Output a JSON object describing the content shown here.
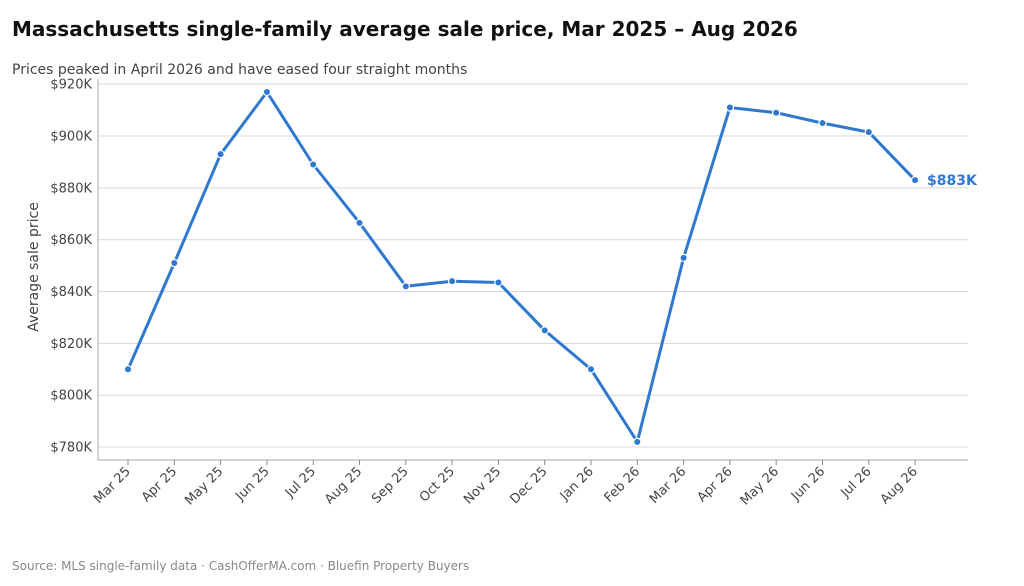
{
  "chart_data": {
    "type": "line",
    "title": "Massachusetts single-family average sale price, Mar 2025 – Aug 2026",
    "subtitle": "Prices peaked in April 2026 and have eased four straight months",
    "xlabel": "",
    "ylabel": "Average sale price",
    "categories": [
      "Mar 25",
      "Apr 25",
      "May 25",
      "Jun 25",
      "Jul 25",
      "Aug 25",
      "Sep 25",
      "Oct 25",
      "Nov 25",
      "Dec 25",
      "Jan 26",
      "Feb 26",
      "Mar 26",
      "Apr 26",
      "May 26",
      "Jun 26",
      "Jul 26",
      "Aug 26"
    ],
    "values": [
      810000,
      851000,
      893000,
      917000,
      889000,
      866500,
      842000,
      844000,
      843500,
      825000,
      810000,
      782000,
      853000,
      911000,
      909000,
      905000,
      901500,
      883000
    ],
    "ylim": [
      775000,
      922000
    ],
    "yticks": [
      780000,
      800000,
      820000,
      840000,
      860000,
      880000,
      900000,
      920000
    ],
    "ytick_labels": [
      "$780K",
      "$800K",
      "$820K",
      "$840K",
      "$860K",
      "$880K",
      "$900K",
      "$920K"
    ],
    "grid": "horizontal",
    "end_label": "$883K",
    "line_color": "#2f78d0",
    "grid_color": "#d8d8d8",
    "axis_color": "#aaaaaa"
  },
  "footer": {
    "source": "Source: MLS single-family data  ·  CashOfferMA.com  ·  Bluefin Property Buyers"
  }
}
